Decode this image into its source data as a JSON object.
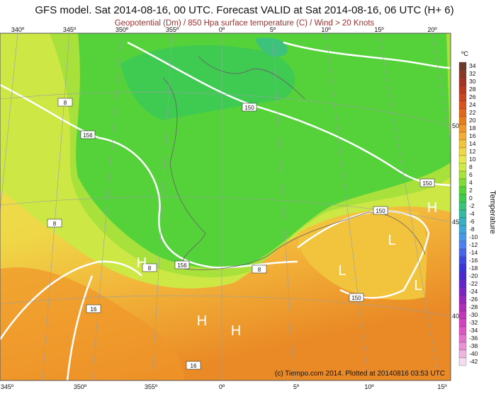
{
  "header": {
    "title": "GFS model. Sat 2014-08-16, 00 UTC. Forecast VALID at Sat 2014-08-16, 06 UTC (H+ 6)",
    "subtitle": "Geopotential (Dm) / 850 Hpa surface temperature (C) / Wind > 20 Knots"
  },
  "top_lon_labels": [
    "340º",
    "345º",
    "350º",
    "355º",
    "0º",
    "5º",
    "10º",
    "15º",
    "20º"
  ],
  "bottom_lon_labels": [
    "345º",
    "350º",
    "355º",
    "0º",
    "5º",
    "10º",
    "15º"
  ],
  "lat_labels": [
    "50º",
    "45º",
    "40º"
  ],
  "colorbar": {
    "unit": "ºC",
    "title": "Temperature",
    "labels": [
      "34",
      "32",
      "30",
      "28",
      "26",
      "24",
      "22",
      "20",
      "18",
      "16",
      "14",
      "12",
      "10",
      "8",
      "6",
      "4",
      "2",
      "0",
      "-2",
      "-4",
      "-6",
      "-8",
      "-10",
      "-12",
      "-14",
      "-16",
      "-18",
      "-20",
      "-22",
      "-24",
      "-26",
      "-28",
      "-30",
      "-32",
      "-34",
      "-36",
      "-38",
      "-40",
      "-42"
    ],
    "colors": [
      "#6e3a30",
      "#8a3a2a",
      "#a33525",
      "#b83a20",
      "#c84520",
      "#d6551e",
      "#e0681c",
      "#e87d1e",
      "#f0962a",
      "#f3ad33",
      "#f2c33c",
      "#efd848",
      "#e8e84c",
      "#cdeb46",
      "#a8e23c",
      "#7edc38",
      "#55d23a",
      "#3fca52",
      "#3cc27a",
      "#3ab8a0",
      "#38b0c0",
      "#40a8d8",
      "#4898e8",
      "#5080f0",
      "#4a64e8",
      "#3c48e0",
      "#3a34d8",
      "#4a28d0",
      "#6424c8",
      "#7e24c2",
      "#9626bc",
      "#ae2cb8",
      "#c236b8",
      "#d244bc",
      "#dc58c4",
      "#e274cc",
      "#e892d6",
      "#eeb4e2",
      "#f6dcf0"
    ]
  },
  "contour_labels": [
    "150",
    "150",
    "150",
    "150",
    "156",
    "156",
    "8",
    "8",
    "8",
    "8",
    "16",
    "16"
  ],
  "pressure_markers": [
    "H",
    "H",
    "H",
    "H",
    "L",
    "L",
    "L"
  ],
  "footer": "(c) Tiempo.com 2014. Plotted at 20140816 03:53 UTC"
}
